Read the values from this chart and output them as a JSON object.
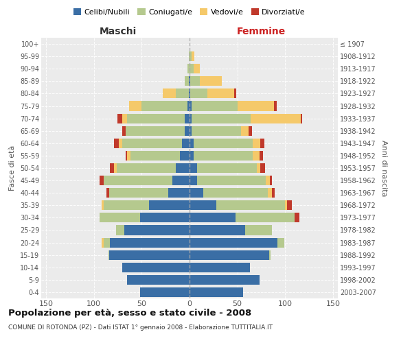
{
  "age_groups": [
    "100+",
    "95-99",
    "90-94",
    "85-89",
    "80-84",
    "75-79",
    "70-74",
    "65-69",
    "60-64",
    "55-59",
    "50-54",
    "45-49",
    "40-44",
    "35-39",
    "30-34",
    "25-29",
    "20-24",
    "15-19",
    "10-14",
    "5-9",
    "0-4"
  ],
  "birth_years": [
    "≤ 1907",
    "1908-1912",
    "1913-1917",
    "1918-1922",
    "1923-1927",
    "1928-1932",
    "1933-1937",
    "1938-1942",
    "1943-1947",
    "1948-1952",
    "1953-1957",
    "1958-1962",
    "1963-1967",
    "1968-1972",
    "1973-1977",
    "1978-1982",
    "1983-1987",
    "1988-1992",
    "1993-1997",
    "1998-2002",
    "2003-2007"
  ],
  "males_celibi": [
    0,
    0,
    0,
    1,
    1,
    2,
    5,
    5,
    8,
    10,
    14,
    18,
    22,
    42,
    52,
    68,
    83,
    84,
    70,
    65,
    52
  ],
  "males_coniugati": [
    0,
    1,
    2,
    4,
    13,
    48,
    60,
    62,
    62,
    52,
    62,
    72,
    62,
    48,
    42,
    9,
    7,
    1,
    0,
    0,
    0
  ],
  "males_vedovi": [
    0,
    0,
    0,
    0,
    14,
    13,
    5,
    0,
    4,
    3,
    3,
    0,
    0,
    2,
    0,
    0,
    2,
    0,
    0,
    0,
    0
  ],
  "males_divorziati": [
    0,
    0,
    0,
    0,
    0,
    0,
    5,
    3,
    5,
    2,
    4,
    4,
    3,
    0,
    0,
    0,
    0,
    0,
    0,
    0,
    0
  ],
  "fem_nubili": [
    0,
    0,
    0,
    1,
    1,
    2,
    2,
    2,
    4,
    4,
    8,
    8,
    14,
    28,
    48,
    58,
    92,
    83,
    63,
    73,
    56
  ],
  "fem_coniugate": [
    0,
    2,
    4,
    10,
    18,
    48,
    62,
    52,
    62,
    62,
    62,
    72,
    68,
    72,
    62,
    28,
    7,
    2,
    0,
    0,
    0
  ],
  "fem_vedove": [
    0,
    3,
    7,
    23,
    28,
    38,
    52,
    8,
    8,
    7,
    4,
    4,
    4,
    2,
    0,
    0,
    0,
    0,
    0,
    0,
    0
  ],
  "fem_divorziate": [
    0,
    0,
    0,
    0,
    2,
    3,
    2,
    3,
    4,
    4,
    5,
    2,
    3,
    5,
    5,
    0,
    0,
    0,
    0,
    0,
    0
  ],
  "color_celibi": "#3a6ea5",
  "color_coniugati": "#b5c98e",
  "color_vedovi": "#f5c96a",
  "color_divorziati": "#c0392b",
  "legend_labels": [
    "Celibi/Nubili",
    "Coniugati/e",
    "Vedovi/e",
    "Divorziati/e"
  ],
  "title": "Popolazione per età, sesso e stato civile - 2008",
  "subtitle": "COMUNE DI ROTONDA (PZ) - Dati ISTAT 1° gennaio 2008 - Elaborazione TUTTITALIA.IT",
  "label_maschi": "Maschi",
  "label_femmine": "Femmine",
  "label_fasce": "Fasce di età",
  "label_anni": "Anni di nascita",
  "xlim": 155,
  "bar_height": 0.78
}
